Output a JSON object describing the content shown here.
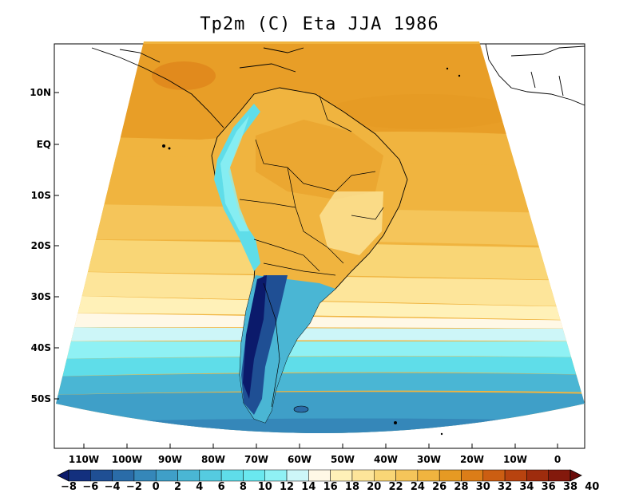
{
  "title": "Tp2m (C) Eta JJA 1986",
  "lat_labels": [
    "10N",
    "EQ",
    "10S",
    "20S",
    "30S",
    "40S",
    "50S"
  ],
  "lon_labels": [
    "110W",
    "100W",
    "90W",
    "80W",
    "70W",
    "60W",
    "50W",
    "40W",
    "30W",
    "20W",
    "10W",
    "0"
  ],
  "colorbar": {
    "labels": [
      "−8",
      "−6",
      "−4",
      "−2",
      "0",
      "2",
      "4",
      "6",
      "8",
      "10",
      "12",
      "14",
      "16",
      "18",
      "20",
      "22",
      "24",
      "26",
      "28",
      "30",
      "32",
      "34",
      "36",
      "38",
      "40"
    ],
    "colors": [
      "#0b1a6b",
      "#13307e",
      "#1f4f94",
      "#2a6ca8",
      "#3587b9",
      "#3f9fc8",
      "#4ab6d4",
      "#55cbe0",
      "#5fdde9",
      "#6ae8ef",
      "#8ff1f4",
      "#cdf6f8",
      "#fff8e6",
      "#fff1b8",
      "#fde59a",
      "#f9d676",
      "#f5c55a",
      "#f0b43f",
      "#e69a23",
      "#dc7d18",
      "#cc5e12",
      "#b8430f",
      "#9e2c0d",
      "#83190c",
      "#6a0c0a"
    ]
  }
}
